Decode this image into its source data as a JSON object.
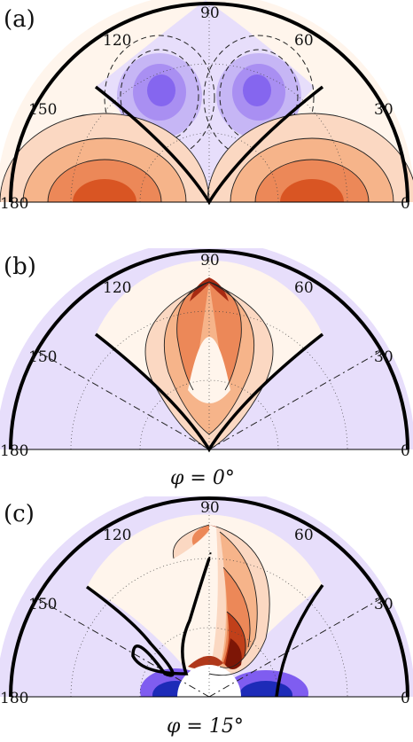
{
  "colors": {
    "negative_light": "#e7defb",
    "negative_mid": "#b7a2f2",
    "negative_strong": "#7f5df0",
    "negative_deep": "#1d2bb8",
    "positive_light": "#fff5ec",
    "positive_mid": "#f5a779",
    "positive_strong": "#e1612d",
    "positive_deep": "#8a1a0a",
    "boundary": "#000000"
  },
  "angle_ticks": [
    "0",
    "30",
    "60",
    "90",
    "120",
    "150",
    "180"
  ],
  "panels": [
    {
      "label": "(a)",
      "caption": ""
    },
    {
      "label": "(b)",
      "caption": "φ = 0°"
    },
    {
      "label": "(c)",
      "caption": "φ = 15°"
    }
  ]
}
